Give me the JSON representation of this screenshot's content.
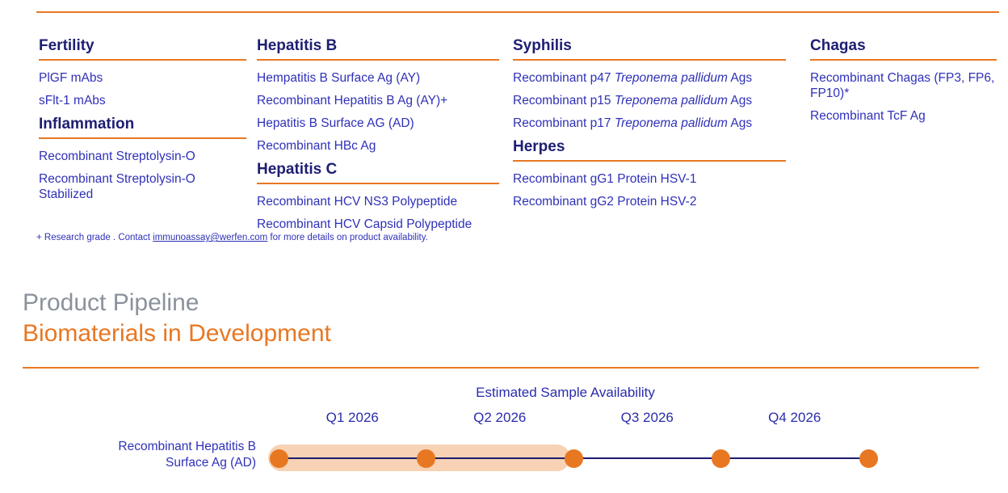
{
  "colors": {
    "accent_orange": "#E87722",
    "heading_navy": "#1D1E72",
    "item_blue": "#2F31B8",
    "timeline_blue": "#2A2CAD",
    "title_gray": "#8A929B",
    "highlight_pill": "#F7D2B4",
    "track_navy": "#1B1C6E"
  },
  "catalog": {
    "columns": [
      {
        "sections": [
          {
            "title": "Fertility",
            "items": [
              [
                {
                  "text": "PlGF mAbs"
                }
              ],
              [
                {
                  "text": "sFlt-1 mAbs"
                }
              ]
            ]
          },
          {
            "title": "Inflammation",
            "items": [
              [
                {
                  "text": "Recombinant Streptolysin-O"
                }
              ],
              [
                {
                  "text": "Recombinant Streptolysin-O Stabilized"
                }
              ]
            ]
          }
        ]
      },
      {
        "sections": [
          {
            "title": "Hepatitis B",
            "items": [
              [
                {
                  "text": "Hempatitis B Surface Ag (AY)"
                }
              ],
              [
                {
                  "text": "Recombinant Hepatitis B Ag (AY)+"
                }
              ],
              [
                {
                  "text": "Hepatitis B Surface AG (AD)"
                }
              ],
              [
                {
                  "text": "Recombinant HBc Ag"
                }
              ]
            ]
          },
          {
            "title": "Hepatitis C",
            "items": [
              [
                {
                  "text": "Recombinant HCV NS3 Polypeptide"
                }
              ],
              [
                {
                  "text": "Recombinant HCV Capsid Polypeptide"
                }
              ]
            ]
          }
        ]
      },
      {
        "sections": [
          {
            "title": "Syphilis",
            "items": [
              [
                {
                  "text": "Recombinant p47 "
                },
                {
                  "text": "Treponema pallidum",
                  "italic": true
                },
                {
                  "text": " Ags"
                }
              ],
              [
                {
                  "text": "Recombinant p15 "
                },
                {
                  "text": "Treponema pallidum",
                  "italic": true
                },
                {
                  "text": " Ags"
                }
              ],
              [
                {
                  "text": "Recombinant p17 "
                },
                {
                  "text": "Treponema pallidum",
                  "italic": true
                },
                {
                  "text": " Ags"
                }
              ]
            ]
          },
          {
            "title": "Herpes",
            "items": [
              [
                {
                  "text": "Recombinant gG1 Protein HSV-1"
                }
              ],
              [
                {
                  "text": "Recombinant gG2 Protein HSV-2"
                }
              ]
            ]
          }
        ]
      },
      {
        "sections": [
          {
            "title": "Chagas",
            "items": [
              [
                {
                  "text": "Recombinant Chagas (FP3, FP6, FP10)*"
                }
              ],
              [
                {
                  "text": "Recombinant TcF Ag"
                }
              ]
            ]
          }
        ]
      }
    ]
  },
  "footnote": {
    "prefix": "+ Research grade . Contact ",
    "link": "immunoassay@werfen.com",
    "suffix": " for more details on product availability."
  },
  "pipeline": {
    "title": "Product Pipeline",
    "subtitle": "Biomaterials in Development",
    "axis_title": "Estimated Sample Availability",
    "quarters": [
      "Q1 2026",
      "Q2 2026",
      "Q3 2026",
      "Q4 2026"
    ],
    "rows": [
      {
        "label_line1": "Recombinant Hepatitis B",
        "label_line2": "Surface Ag (AD)",
        "highlight_from": "Q1 2026",
        "highlight_to": "Q2 2026",
        "milestone_count": 5
      }
    ]
  }
}
